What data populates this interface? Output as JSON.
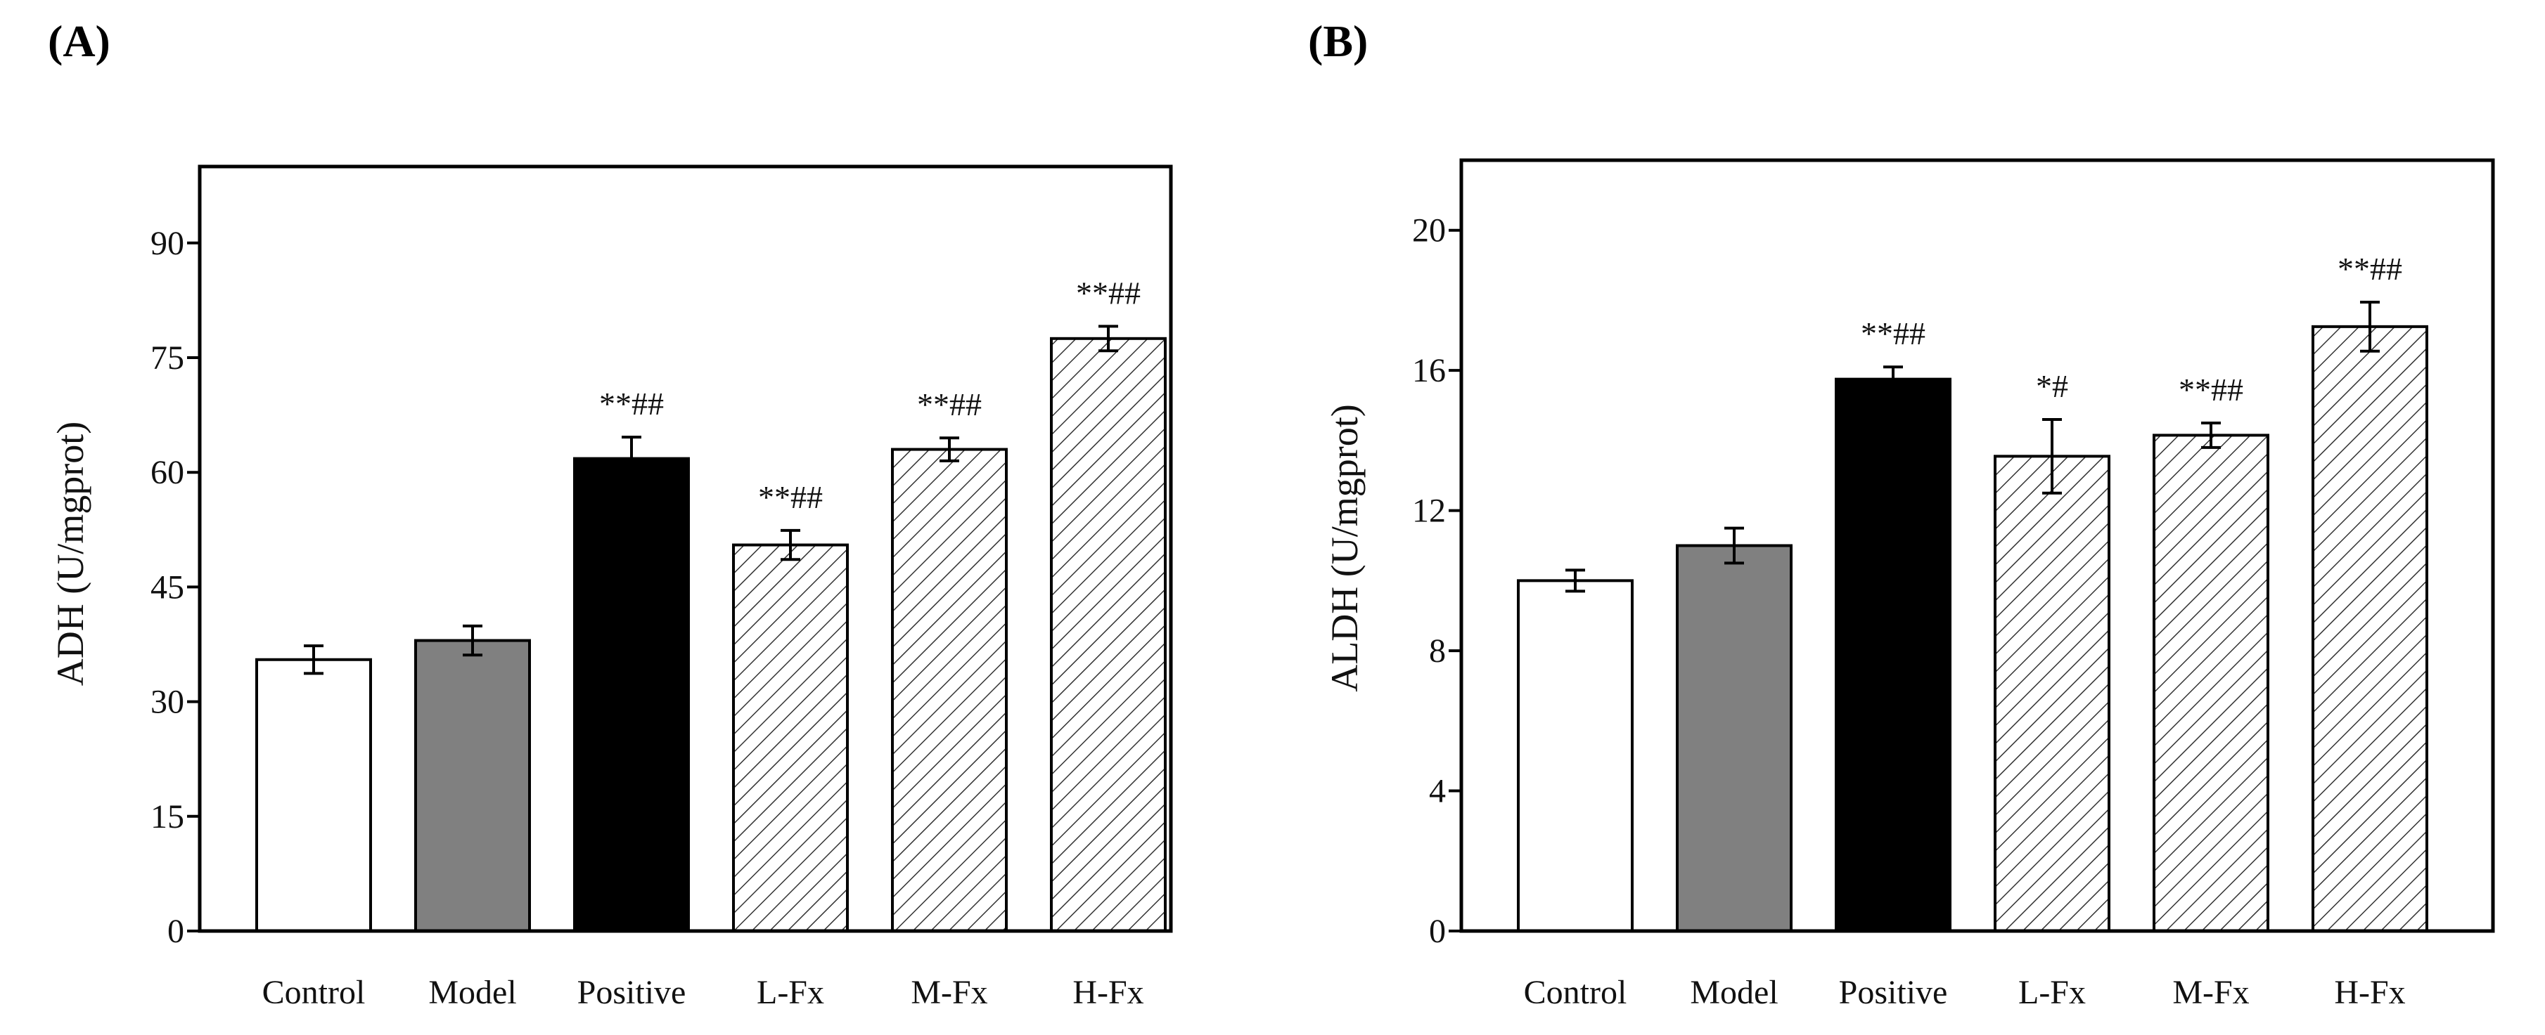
{
  "chart_data": [
    {
      "type": "bar",
      "panel_label": "(A)",
      "title": "",
      "xlabel": "",
      "ylabel": "ADH (U/mgprot)",
      "categories": [
        "Control",
        "Model",
        "Positive",
        "L-Fx",
        "M-Fx",
        "H-Fx"
      ],
      "values": [
        35.5,
        38.0,
        61.8,
        50.5,
        63.0,
        77.5
      ],
      "errors": [
        1.8,
        1.9,
        2.8,
        1.9,
        1.5,
        1.6
      ],
      "annotations": [
        "",
        "",
        "**##",
        "**##",
        "**##",
        "**##"
      ],
      "fills": [
        "white",
        "gray",
        "black",
        "hatch",
        "hatch",
        "hatch"
      ],
      "ylim": [
        0,
        100
      ],
      "yticks": [
        0,
        15,
        30,
        45,
        60,
        75,
        90
      ],
      "grid": false
    },
    {
      "type": "bar",
      "panel_label": "(B)",
      "title": "",
      "xlabel": "",
      "ylabel": "ALDH (U/mgprot)",
      "categories": [
        "Control",
        "Model",
        "Positive",
        "L-Fx",
        "M-Fx",
        "H-Fx"
      ],
      "values": [
        10.0,
        11.0,
        15.75,
        13.55,
        14.15,
        17.25
      ],
      "errors": [
        0.3,
        0.5,
        0.35,
        1.05,
        0.35,
        0.7
      ],
      "annotations": [
        "",
        "",
        "**##",
        "*#",
        "**##",
        "**##"
      ],
      "fills": [
        "white",
        "gray",
        "black",
        "hatch",
        "hatch",
        "hatch"
      ],
      "ylim": [
        0,
        22
      ],
      "yticks": [
        0,
        4,
        8,
        12,
        16,
        20
      ],
      "grid": false
    }
  ],
  "colors": {
    "gray": "#808080",
    "black": "#000000",
    "white": "#ffffff",
    "hatch_line": "#333333"
  }
}
